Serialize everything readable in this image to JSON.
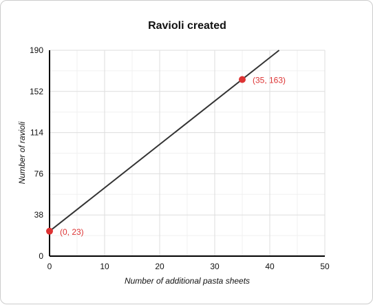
{
  "chart_data": {
    "type": "line",
    "title": "Ravioli created",
    "xlabel": "Number of additional pasta sheets",
    "ylabel": "Number of ravioli",
    "xlim": [
      0,
      50
    ],
    "ylim": [
      0,
      190
    ],
    "x_ticks": [
      0,
      10,
      20,
      30,
      40,
      50
    ],
    "y_ticks": [
      0,
      38,
      76,
      114,
      152,
      190
    ],
    "x_tick_labels": [
      "0",
      "10",
      "20",
      "30",
      "40",
      "50"
    ],
    "y_tick_labels": [
      "0",
      "38",
      "76",
      "114",
      "152",
      "190"
    ],
    "x_minor_step": 5,
    "y_minor_step": 19,
    "grid": true,
    "line": {
      "x": [
        0,
        41.7
      ],
      "y": [
        23,
        190
      ],
      "color": "#333333"
    },
    "points": [
      {
        "x": 0,
        "y": 23,
        "label": "(0, 23)"
      },
      {
        "x": 35,
        "y": 163,
        "label": "(35, 163)"
      }
    ],
    "point_color": "#dd3333"
  }
}
